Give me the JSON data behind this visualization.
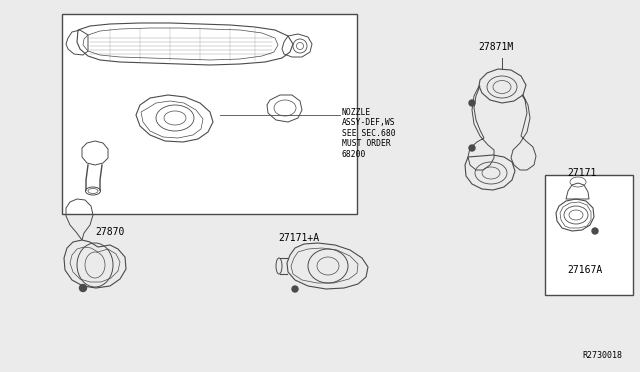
{
  "bg_color": "#ebebeb",
  "line_color": "#4a4a4a",
  "text_color": "#000000",
  "ref_number": "R2730018",
  "main_box_label": "NOZZLE\nASSY-DEF,WS\nSEE SEC.680\nMUST ORDER\n68200",
  "part_27870": "27870",
  "part_27171A": "27171+A",
  "part_27871M": "27871M",
  "part_27171": "27171",
  "part_27167A": "27167A",
  "font_size": 7,
  "font_size_ref": 6
}
